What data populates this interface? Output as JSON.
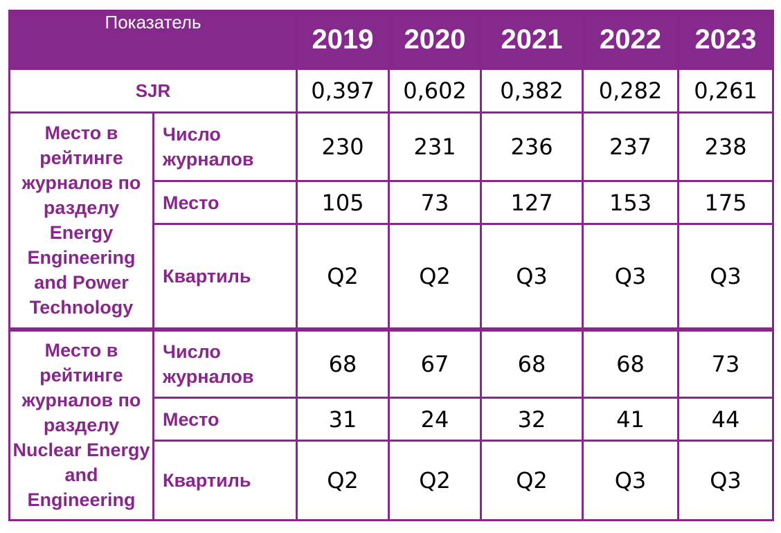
{
  "header": {
    "indicator": "Показатель",
    "years": [
      "2019",
      "2020",
      "2021",
      "2022",
      "2023"
    ]
  },
  "sjr": {
    "label": "SJR",
    "values": [
      "0,397",
      "0,602",
      "0,382",
      "0,282",
      "0,261"
    ]
  },
  "groups": [
    {
      "title": "Место в рейтинге журналов по разделу Energy Engineering and Power Technology",
      "rows": [
        {
          "label": "Число журналов",
          "values": [
            "230",
            "231",
            "236",
            "237",
            "238"
          ]
        },
        {
          "label": "Место",
          "values": [
            "105",
            "73",
            "127",
            "153",
            "175"
          ]
        },
        {
          "label": "Квартиль",
          "values": [
            "Q2",
            "Q2",
            "Q3",
            "Q3",
            "Q3"
          ]
        }
      ]
    },
    {
      "title": "Место в рейтинге журналов по разделу Nuclear Energy and Engineering",
      "rows": [
        {
          "label": "Число журналов",
          "values": [
            "68",
            "67",
            "68",
            "68",
            "73"
          ]
        },
        {
          "label": "Место",
          "values": [
            "31",
            "24",
            "32",
            "41",
            "44"
          ]
        },
        {
          "label": "Квартиль",
          "values": [
            "Q2",
            "Q2",
            "Q2",
            "Q3",
            "Q3"
          ]
        }
      ]
    }
  ],
  "colors": {
    "accent": "#87278b",
    "header_bg": "#86298c",
    "text": "#000000"
  }
}
